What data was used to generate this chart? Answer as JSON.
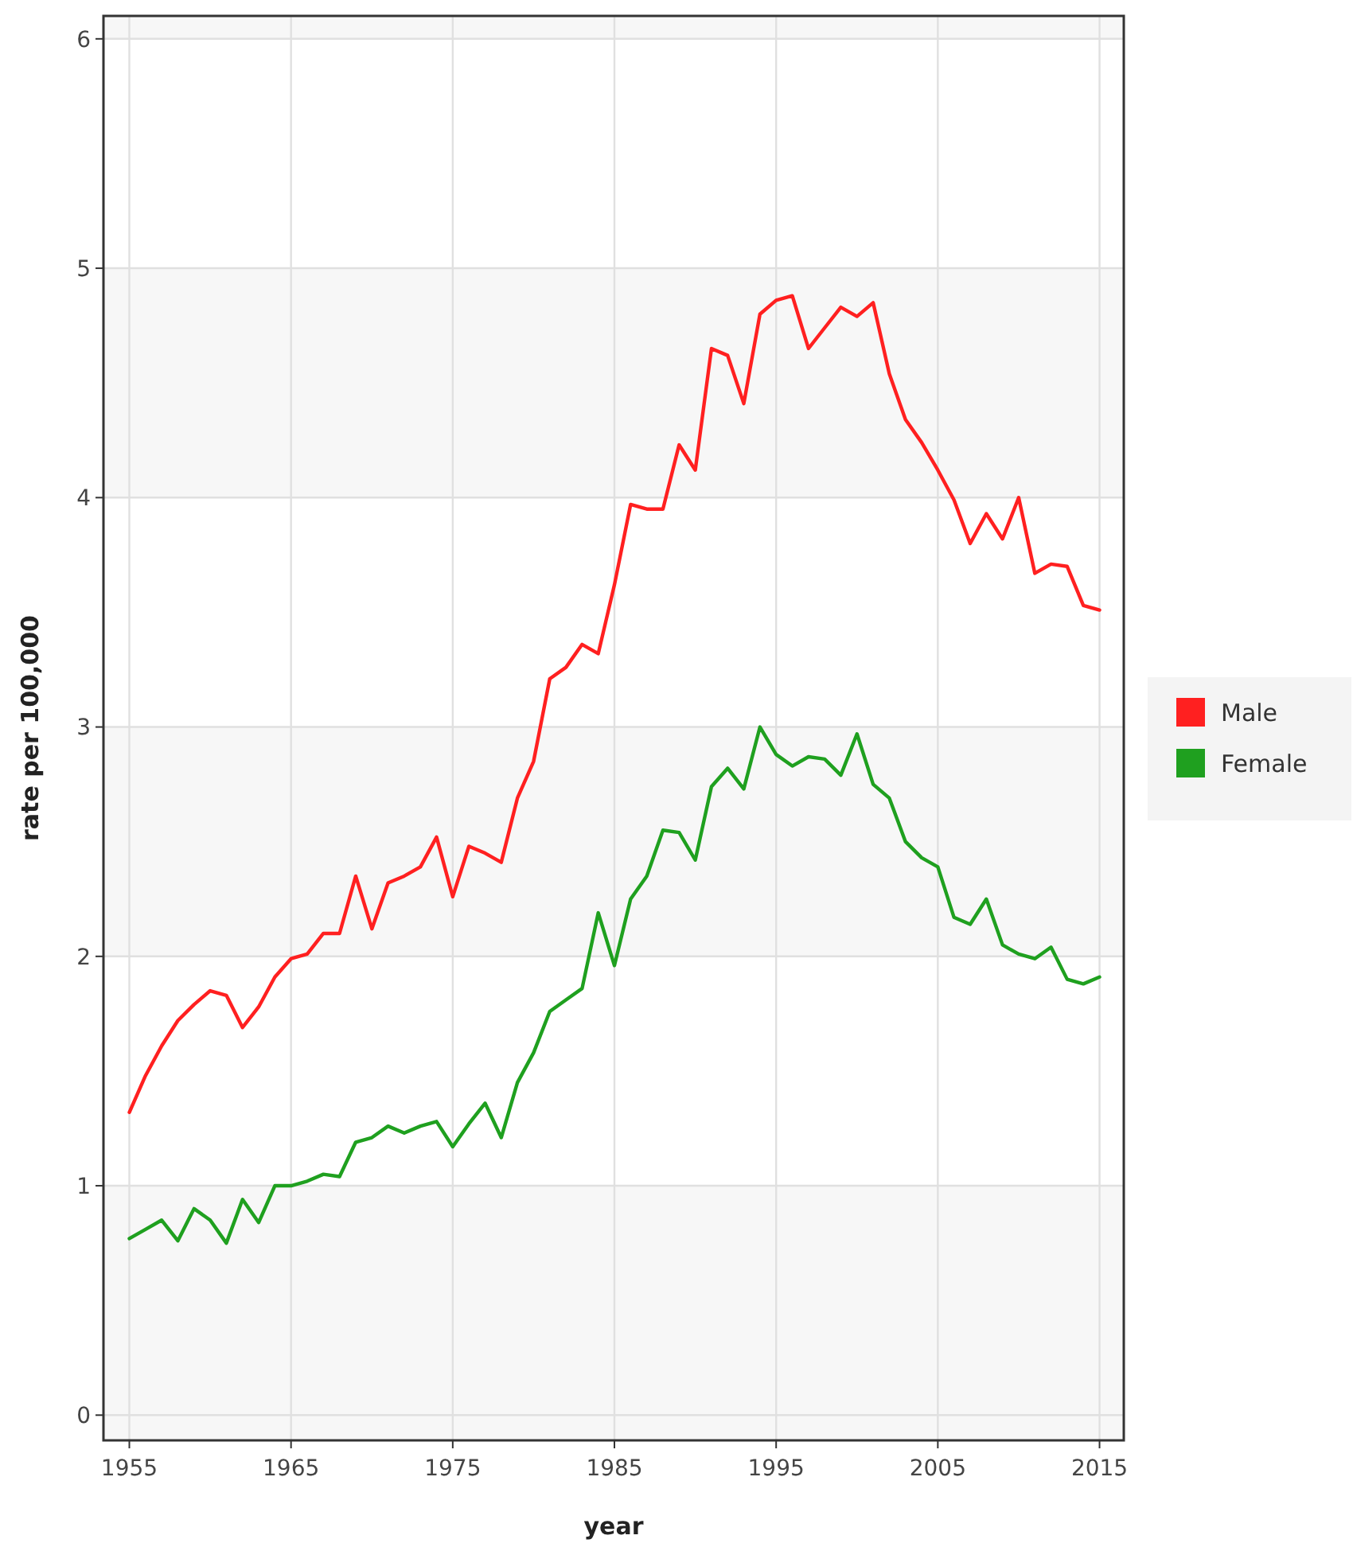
{
  "chart_data": {
    "type": "line",
    "xlabel": "year",
    "ylabel": "rate per 100,000",
    "x": [
      1955,
      1956,
      1957,
      1958,
      1959,
      1960,
      1961,
      1962,
      1963,
      1964,
      1965,
      1966,
      1967,
      1968,
      1969,
      1970,
      1971,
      1972,
      1973,
      1974,
      1975,
      1976,
      1977,
      1978,
      1979,
      1980,
      1981,
      1982,
      1983,
      1984,
      1985,
      1986,
      1987,
      1988,
      1989,
      1990,
      1991,
      1992,
      1993,
      1994,
      1995,
      1996,
      1997,
      1998,
      1999,
      2000,
      2001,
      2002,
      2003,
      2004,
      2005,
      2006,
      2007,
      2008,
      2009,
      2010,
      2011,
      2012,
      2013,
      2014,
      2015
    ],
    "series": [
      {
        "name": "Male",
        "color": "#ff2020",
        "values": [
          1.32,
          1.48,
          1.61,
          1.72,
          1.79,
          1.85,
          1.83,
          1.69,
          1.78,
          1.91,
          1.99,
          2.01,
          2.1,
          2.1,
          2.35,
          2.12,
          2.32,
          2.35,
          2.39,
          2.52,
          2.26,
          2.48,
          2.45,
          2.41,
          2.69,
          2.85,
          3.21,
          3.26,
          3.36,
          3.32,
          3.62,
          3.97,
          3.95,
          3.95,
          4.23,
          4.12,
          4.65,
          4.62,
          4.41,
          4.8,
          4.86,
          4.88,
          4.65,
          4.74,
          4.83,
          4.79,
          4.85,
          4.54,
          4.34,
          4.24,
          4.12,
          3.99,
          3.8,
          3.93,
          3.82,
          4.0,
          3.67,
          3.71,
          3.7,
          3.53,
          3.51
        ]
      },
      {
        "name": "Female",
        "color": "#1fa01f",
        "values": [
          0.77,
          0.81,
          0.85,
          0.76,
          0.9,
          0.85,
          0.75,
          0.94,
          0.84,
          1.0,
          1.0,
          1.02,
          1.05,
          1.04,
          1.19,
          1.21,
          1.26,
          1.23,
          1.26,
          1.28,
          1.17,
          1.27,
          1.36,
          1.21,
          1.45,
          1.58,
          1.76,
          1.81,
          1.86,
          2.19,
          1.96,
          2.25,
          2.35,
          2.55,
          2.54,
          2.42,
          2.74,
          2.82,
          2.73,
          3.0,
          2.88,
          2.83,
          2.87,
          2.86,
          2.79,
          2.97,
          2.75,
          2.69,
          2.5,
          2.43,
          2.39,
          2.17,
          2.14,
          2.25,
          2.05,
          2.01,
          1.99,
          2.04,
          1.9,
          1.88,
          1.91
        ]
      }
    ],
    "xlim": [
      1953.4,
      2016.5
    ],
    "xticks": [
      1955,
      1965,
      1975,
      1985,
      1995,
      2005,
      2015
    ],
    "ylim": [
      -0.11,
      6.1
    ],
    "yticks": [
      0,
      1,
      2,
      3,
      4,
      5,
      6
    ],
    "bands": [
      {
        "axis": "y",
        "from": -0.11,
        "to": 1,
        "color": "#f7f7f7"
      },
      {
        "axis": "y",
        "from": 2,
        "to": 3,
        "color": "#f7f7f7"
      },
      {
        "axis": "y",
        "from": 4,
        "to": 5,
        "color": "#f7f7f7"
      },
      {
        "axis": "y",
        "from": 6,
        "to": 6.1,
        "color": "#f7f7f7"
      }
    ],
    "grid": true,
    "legend": "right",
    "line_style": "solid",
    "marker": "none"
  }
}
